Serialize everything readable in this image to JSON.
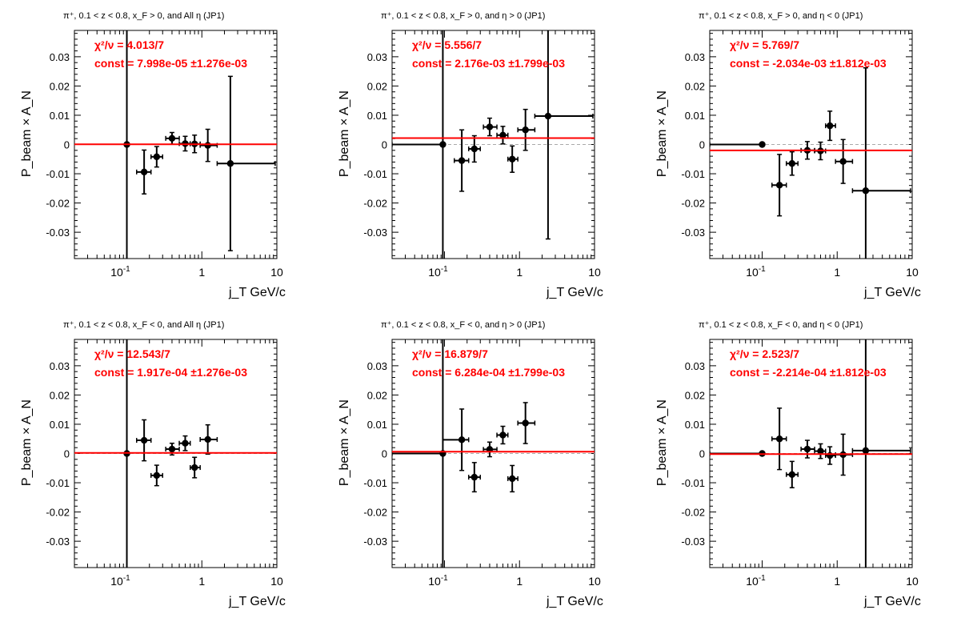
{
  "colors": {
    "fit": "#ff0000",
    "zero": "#aaaaaa",
    "points": "#000000"
  },
  "chart_data": [
    {
      "type": "scatter",
      "title": "π⁺, 0.1 < z < 0.8, x_F > 0, and All η (JP1)",
      "xlabel": "j_T GeV/c",
      "ylabel": "P_beam × A_N",
      "xscale": "log",
      "xlim": [
        0.02,
        10
      ],
      "ylim": [
        -0.039,
        0.039
      ],
      "xticks": [
        0.1,
        1,
        10
      ],
      "yticks": [
        -0.03,
        -0.02,
        -0.01,
        0,
        0.01,
        0.02,
        0.03
      ],
      "fit": {
        "chi2_label": "χ²/ν = 4.013/7",
        "const_label": "const = 7.998e-05  ±1.276e-03",
        "const": 8e-05
      },
      "points": [
        {
          "x": 0.1,
          "y": 0.0,
          "xlo": 0.1,
          "xhi": 0.1,
          "ey": 0.06
        },
        {
          "x": 0.17,
          "y": -0.0094,
          "xlo": 0.135,
          "xhi": 0.21,
          "ey": 0.0075
        },
        {
          "x": 0.25,
          "y": -0.0042,
          "xlo": 0.21,
          "xhi": 0.3,
          "ey": 0.0035
        },
        {
          "x": 0.4,
          "y": 0.0021,
          "xlo": 0.33,
          "xhi": 0.5,
          "ey": 0.002
        },
        {
          "x": 0.6,
          "y": 0.0003,
          "xlo": 0.5,
          "xhi": 0.7,
          "ey": 0.0025
        },
        {
          "x": 0.8,
          "y": 0.0002,
          "xlo": 0.7,
          "xhi": 0.95,
          "ey": 0.003
        },
        {
          "x": 1.2,
          "y": -0.0003,
          "xlo": 0.95,
          "xhi": 1.6,
          "ey": 0.0055
        },
        {
          "x": 2.4,
          "y": -0.0065,
          "xlo": 1.6,
          "xhi": 9.5,
          "ey": 0.0298
        }
      ]
    },
    {
      "type": "scatter",
      "title": "π⁺, 0.1 < z < 0.8, x_F > 0, and η > 0 (JP1)",
      "xlabel": "j_T GeV/c",
      "ylabel": "P_beam × A_N",
      "xscale": "log",
      "xlim": [
        0.02,
        10
      ],
      "ylim": [
        -0.039,
        0.039
      ],
      "xticks": [
        0.1,
        1,
        10
      ],
      "yticks": [
        -0.03,
        -0.02,
        -0.01,
        0,
        0.01,
        0.02,
        0.03
      ],
      "fit": {
        "chi2_label": "χ²/ν = 5.556/7",
        "const_label": "const = 2.176e-03  ±1.799e-03",
        "const": 0.002176
      },
      "points": [
        {
          "x": 0.095,
          "y": 0.0,
          "xlo": 0.02,
          "xhi": 0.095,
          "ey": 0.06
        },
        {
          "x": 0.17,
          "y": -0.0055,
          "xlo": 0.135,
          "xhi": 0.21,
          "ey": 0.0105
        },
        {
          "x": 0.25,
          "y": -0.0015,
          "xlo": 0.21,
          "xhi": 0.3,
          "ey": 0.0045
        },
        {
          "x": 0.4,
          "y": 0.006,
          "xlo": 0.33,
          "xhi": 0.5,
          "ey": 0.003
        },
        {
          "x": 0.6,
          "y": 0.0032,
          "xlo": 0.5,
          "xhi": 0.7,
          "ey": 0.003
        },
        {
          "x": 0.8,
          "y": -0.005,
          "xlo": 0.7,
          "xhi": 0.95,
          "ey": 0.0045
        },
        {
          "x": 1.2,
          "y": 0.005,
          "xlo": 0.95,
          "xhi": 1.6,
          "ey": 0.007
        },
        {
          "x": 2.4,
          "y": 0.0097,
          "xlo": 1.6,
          "xhi": 9.5,
          "ey": 0.042
        }
      ]
    },
    {
      "type": "scatter",
      "title": "π⁺, 0.1 < z < 0.8, x_F > 0, and η < 0 (JP1)",
      "xlabel": "j_T GeV/c",
      "ylabel": "P_beam × A_N",
      "xscale": "log",
      "xlim": [
        0.02,
        10
      ],
      "ylim": [
        -0.039,
        0.039
      ],
      "xticks": [
        0.1,
        1,
        10
      ],
      "yticks": [
        -0.03,
        -0.02,
        -0.01,
        0,
        0.01,
        0.02,
        0.03
      ],
      "fit": {
        "chi2_label": "χ²/ν = 5.769/7",
        "const_label": "const = -2.034e-03  ±1.812e-03",
        "const": -0.002034
      },
      "points": [
        {
          "x": 0.1,
          "y": 0.0,
          "xlo": 0.02,
          "xhi": 0.1,
          "ey": 0.0
        },
        {
          "x": 0.17,
          "y": -0.0139,
          "xlo": 0.135,
          "xhi": 0.21,
          "ey": 0.0105
        },
        {
          "x": 0.25,
          "y": -0.0065,
          "xlo": 0.21,
          "xhi": 0.3,
          "ey": 0.004
        },
        {
          "x": 0.4,
          "y": -0.002,
          "xlo": 0.33,
          "xhi": 0.5,
          "ey": 0.003
        },
        {
          "x": 0.6,
          "y": -0.0022,
          "xlo": 0.5,
          "xhi": 0.7,
          "ey": 0.003
        },
        {
          "x": 0.8,
          "y": 0.0064,
          "xlo": 0.7,
          "xhi": 0.95,
          "ey": 0.005
        },
        {
          "x": 1.2,
          "y": -0.0058,
          "xlo": 0.95,
          "xhi": 1.6,
          "ey": 0.0075
        },
        {
          "x": 2.4,
          "y": -0.0158,
          "xlo": 1.6,
          "xhi": 9.5,
          "ey": 0.042
        }
      ]
    },
    {
      "type": "scatter",
      "title": "π⁺, 0.1 < z < 0.8, x_F < 0, and All η (JP1)",
      "xlabel": "j_T GeV/c",
      "ylabel": "P_beam × A_N",
      "xscale": "log",
      "xlim": [
        0.02,
        10
      ],
      "ylim": [
        -0.039,
        0.039
      ],
      "xticks": [
        0.1,
        1,
        10
      ],
      "yticks": [
        -0.03,
        -0.02,
        -0.01,
        0,
        0.01,
        0.02,
        0.03
      ],
      "fit": {
        "chi2_label": "χ²/ν = 12.543/7",
        "const_label": "const = 1.917e-04  ±1.276e-03",
        "const": 0.0001917
      },
      "points": [
        {
          "x": 0.1,
          "y": 0.0,
          "xlo": 0.1,
          "xhi": 0.1,
          "ey": 0.06
        },
        {
          "x": 0.17,
          "y": 0.0045,
          "xlo": 0.135,
          "xhi": 0.21,
          "ey": 0.007
        },
        {
          "x": 0.25,
          "y": -0.0075,
          "xlo": 0.21,
          "xhi": 0.3,
          "ey": 0.0035
        },
        {
          "x": 0.4,
          "y": 0.0015,
          "xlo": 0.33,
          "xhi": 0.5,
          "ey": 0.002
        },
        {
          "x": 0.6,
          "y": 0.0035,
          "xlo": 0.5,
          "xhi": 0.7,
          "ey": 0.0025
        },
        {
          "x": 0.8,
          "y": -0.0048,
          "xlo": 0.7,
          "xhi": 0.95,
          "ey": 0.0035
        },
        {
          "x": 1.2,
          "y": 0.0048,
          "xlo": 0.95,
          "xhi": 1.6,
          "ey": 0.005
        }
      ]
    },
    {
      "type": "scatter",
      "title": "π⁺, 0.1 < z < 0.8, x_F < 0, and η > 0 (JP1)",
      "xlabel": "j_T GeV/c",
      "ylabel": "P_beam × A_N",
      "xscale": "log",
      "xlim": [
        0.02,
        10
      ],
      "ylim": [
        -0.039,
        0.039
      ],
      "xticks": [
        0.1,
        1,
        10
      ],
      "yticks": [
        -0.03,
        -0.02,
        -0.01,
        0,
        0.01,
        0.02,
        0.03
      ],
      "fit": {
        "chi2_label": "χ²/ν = 16.879/7",
        "const_label": "const = 6.284e-04  ±1.799e-03",
        "const": 0.0006284
      },
      "points": [
        {
          "x": 0.095,
          "y": 0.0,
          "xlo": 0.02,
          "xhi": 0.095,
          "ey": 0.06
        },
        {
          "x": 0.17,
          "y": 0.0047,
          "xlo": 0.095,
          "xhi": 0.21,
          "ey": 0.0105
        },
        {
          "x": 0.25,
          "y": -0.0081,
          "xlo": 0.21,
          "xhi": 0.3,
          "ey": 0.005
        },
        {
          "x": 0.4,
          "y": 0.0014,
          "xlo": 0.33,
          "xhi": 0.5,
          "ey": 0.0025
        },
        {
          "x": 0.6,
          "y": 0.0063,
          "xlo": 0.5,
          "xhi": 0.7,
          "ey": 0.003
        },
        {
          "x": 0.8,
          "y": -0.0086,
          "xlo": 0.7,
          "xhi": 0.95,
          "ey": 0.0045
        },
        {
          "x": 1.2,
          "y": 0.0104,
          "xlo": 0.95,
          "xhi": 1.6,
          "ey": 0.007
        }
      ]
    },
    {
      "type": "scatter",
      "title": "π⁺, 0.1 < z < 0.8, x_F < 0, and η < 0 (JP1)",
      "xlabel": "j_T GeV/c",
      "ylabel": "P_beam × A_N",
      "xscale": "log",
      "xlim": [
        0.02,
        10
      ],
      "ylim": [
        -0.039,
        0.039
      ],
      "xticks": [
        0.1,
        1,
        10
      ],
      "yticks": [
        -0.03,
        -0.02,
        -0.01,
        0,
        0.01,
        0.02,
        0.03
      ],
      "fit": {
        "chi2_label": "χ²/ν = 2.523/7",
        "const_label": "const = -2.214e-04  ±1.812e-03",
        "const": -0.0002214
      },
      "points": [
        {
          "x": 0.1,
          "y": 0.0,
          "xlo": 0.02,
          "xhi": 0.1,
          "ey": 0.0
        },
        {
          "x": 0.17,
          "y": 0.005,
          "xlo": 0.135,
          "xhi": 0.21,
          "ey": 0.0105
        },
        {
          "x": 0.25,
          "y": -0.0072,
          "xlo": 0.21,
          "xhi": 0.3,
          "ey": 0.0045
        },
        {
          "x": 0.4,
          "y": 0.0015,
          "xlo": 0.33,
          "xhi": 0.5,
          "ey": 0.003
        },
        {
          "x": 0.6,
          "y": 0.0008,
          "xlo": 0.5,
          "xhi": 0.7,
          "ey": 0.0025
        },
        {
          "x": 0.8,
          "y": -0.0007,
          "xlo": 0.7,
          "xhi": 0.95,
          "ey": 0.003
        },
        {
          "x": 1.2,
          "y": -0.0004,
          "xlo": 0.95,
          "xhi": 1.6,
          "ey": 0.007
        },
        {
          "x": 2.4,
          "y": 0.001,
          "xlo": 1.6,
          "xhi": 9.5,
          "ey": 0.042
        }
      ]
    }
  ]
}
